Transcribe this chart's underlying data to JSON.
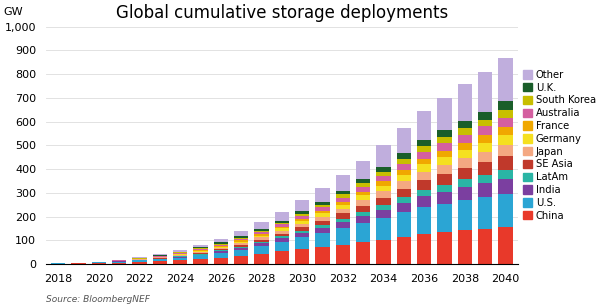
{
  "title": "Global cumulative storage deployments",
  "ylabel": "GW",
  "source": "Source: BloombergNEF",
  "years": [
    2018,
    2019,
    2020,
    2021,
    2022,
    2023,
    2024,
    2025,
    2026,
    2027,
    2028,
    2029,
    2030,
    2031,
    2032,
    2033,
    2034,
    2035,
    2036,
    2037,
    2038,
    2039,
    2040
  ],
  "series": {
    "China": [
      2,
      3,
      4,
      6,
      9,
      12,
      16,
      21,
      27,
      34,
      43,
      53,
      63,
      72,
      82,
      92,
      103,
      115,
      127,
      134,
      142,
      148,
      155
    ],
    "U.S.": [
      1,
      2,
      3,
      4,
      6,
      8,
      11,
      15,
      20,
      26,
      33,
      41,
      50,
      60,
      70,
      80,
      91,
      102,
      112,
      120,
      127,
      133,
      140
    ],
    "India": [
      0,
      0,
      0,
      1,
      1,
      2,
      3,
      4,
      6,
      8,
      11,
      14,
      17,
      21,
      25,
      30,
      35,
      41,
      47,
      51,
      55,
      59,
      64
    ],
    "LatAm": [
      0,
      0,
      0,
      0,
      1,
      1,
      2,
      3,
      4,
      5,
      6,
      8,
      10,
      12,
      14,
      17,
      20,
      23,
      27,
      29,
      32,
      35,
      38
    ],
    "SE Asia": [
      0,
      0,
      0,
      1,
      1,
      2,
      3,
      4,
      5,
      7,
      9,
      12,
      15,
      18,
      22,
      26,
      31,
      36,
      41,
      45,
      49,
      53,
      57
    ],
    "Japan": [
      0,
      0,
      1,
      1,
      2,
      3,
      4,
      5,
      6,
      8,
      10,
      12,
      15,
      17,
      20,
      24,
      27,
      31,
      35,
      38,
      41,
      44,
      47
    ],
    "Germany": [
      0,
      0,
      0,
      1,
      1,
      2,
      3,
      4,
      5,
      6,
      8,
      10,
      12,
      14,
      17,
      20,
      23,
      27,
      30,
      33,
      36,
      39,
      42
    ],
    "France": [
      0,
      0,
      0,
      0,
      1,
      1,
      2,
      3,
      4,
      5,
      6,
      7,
      9,
      11,
      13,
      15,
      18,
      21,
      24,
      26,
      28,
      31,
      33
    ],
    "Australia": [
      0,
      0,
      0,
      1,
      1,
      2,
      3,
      4,
      5,
      6,
      8,
      10,
      12,
      14,
      17,
      20,
      23,
      26,
      30,
      32,
      35,
      37,
      40
    ],
    "South Korea": [
      0,
      0,
      0,
      0,
      1,
      1,
      2,
      3,
      4,
      5,
      6,
      7,
      9,
      11,
      13,
      15,
      17,
      20,
      23,
      25,
      27,
      29,
      32
    ],
    "U.K.": [
      0,
      0,
      0,
      1,
      1,
      2,
      3,
      4,
      5,
      6,
      7,
      9,
      11,
      13,
      15,
      18,
      21,
      24,
      27,
      30,
      32,
      34,
      37
    ],
    "Other": [
      0,
      0,
      1,
      2,
      3,
      5,
      8,
      12,
      16,
      21,
      28,
      36,
      45,
      55,
      66,
      78,
      92,
      107,
      122,
      137,
      152,
      167,
      183
    ]
  },
  "colors": {
    "China": "#e8392a",
    "U.S.": "#2ba5d4",
    "India": "#7b3fa0",
    "LatAm": "#2ab5a5",
    "SE Asia": "#c0392b",
    "Japan": "#f4a882",
    "Germany": "#f5e020",
    "France": "#f0a800",
    "Australia": "#d45fa0",
    "South Korea": "#c8be00",
    "U.K.": "#1a5e2a",
    "Other": "#c0aedd"
  },
  "ylim": [
    0,
    1000
  ],
  "yticks": [
    0,
    100,
    200,
    300,
    400,
    500,
    600,
    700,
    800,
    900,
    1000
  ],
  "ytick_labels": [
    "0",
    "100",
    "200",
    "300",
    "400",
    "500",
    "600",
    "700",
    "800",
    "900",
    "1,000"
  ],
  "background_color": "#ffffff",
  "title_fontsize": 12,
  "axis_fontsize": 8
}
